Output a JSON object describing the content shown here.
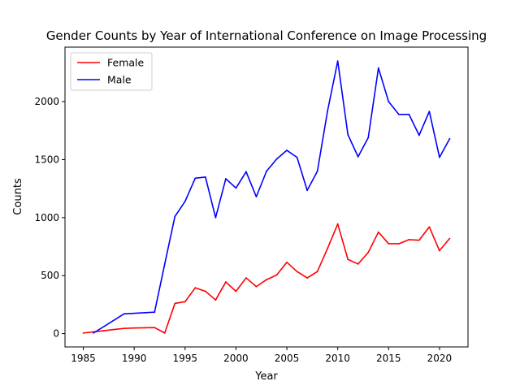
{
  "chart_data": {
    "type": "line",
    "title": "Gender Counts by Year of International Conference on Image Processing",
    "xlabel": "Year",
    "ylabel": "Counts",
    "xlim": [
      1983.2,
      2022.8
    ],
    "ylim": [
      -115,
      2470
    ],
    "xticks": [
      1985,
      1990,
      1995,
      2000,
      2005,
      2010,
      2015,
      2020
    ],
    "yticks": [
      0,
      500,
      1000,
      1500,
      2000
    ],
    "grid": false,
    "legend": "top-left",
    "series": [
      {
        "name": "Female",
        "color": "#ff0000",
        "x": [
          1985,
          1986,
          1987,
          1988,
          1989,
          1990,
          1991,
          1992,
          1993,
          1994,
          1995,
          1996,
          1997,
          1998,
          1999,
          2000,
          2001,
          2002,
          2003,
          2004,
          2005,
          2006,
          2007,
          2008,
          2009,
          2010,
          2011,
          2012,
          2013,
          2014,
          2015,
          2016,
          2017,
          2018,
          2019,
          2020,
          2021
        ],
        "y": [
          5,
          15,
          25,
          35,
          45,
          48,
          50,
          52,
          5,
          260,
          275,
          395,
          365,
          290,
          445,
          365,
          480,
          405,
          465,
          505,
          615,
          535,
          480,
          535,
          735,
          945,
          640,
          600,
          700,
          875,
          775,
          775,
          810,
          805,
          920,
          715,
          820
        ]
      },
      {
        "name": "Male",
        "color": "#0000ff",
        "x": [
          1986,
          1989,
          1992,
          1993,
          1994,
          1995,
          1996,
          1997,
          1998,
          1999,
          2000,
          2001,
          2002,
          2003,
          2004,
          2005,
          2006,
          2007,
          2008,
          2009,
          2010,
          2011,
          2012,
          2013,
          2014,
          2015,
          2016,
          2017,
          2018,
          2019,
          2020,
          2021
        ],
        "y": [
          5,
          170,
          185,
          600,
          1010,
          1140,
          1340,
          1350,
          1000,
          1335,
          1255,
          1395,
          1180,
          1400,
          1505,
          1580,
          1520,
          1235,
          1400,
          1920,
          2350,
          1715,
          1525,
          1690,
          2290,
          2000,
          1890,
          1890,
          1710,
          1915,
          1520,
          1680
        ]
      }
    ]
  }
}
